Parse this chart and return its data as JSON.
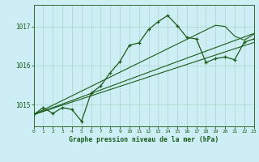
{
  "title": "Graphe pression niveau de la mer (hPa)",
  "background_color": "#cdeef5",
  "grid_color": "#a8d5c8",
  "line_color": "#1a5c1a",
  "hours": [
    0,
    1,
    2,
    3,
    4,
    5,
    6,
    7,
    8,
    9,
    10,
    11,
    12,
    13,
    14,
    15,
    16,
    17,
    18,
    19,
    20,
    21,
    22,
    23
  ],
  "pressure": [
    1014.75,
    1014.93,
    1014.78,
    1014.93,
    1014.88,
    1014.58,
    1015.3,
    1015.48,
    1015.82,
    1016.1,
    1016.52,
    1016.58,
    1016.92,
    1017.12,
    1017.28,
    1017.02,
    1016.72,
    1016.68,
    1016.08,
    1016.18,
    1016.22,
    1016.15,
    1016.6,
    1016.68
  ],
  "trend1": [
    1014.75,
    1014.84,
    1014.93,
    1015.02,
    1015.11,
    1015.2,
    1015.29,
    1015.38,
    1015.47,
    1015.56,
    1015.65,
    1015.74,
    1015.83,
    1015.92,
    1016.01,
    1016.1,
    1016.19,
    1016.28,
    1016.37,
    1016.46,
    1016.55,
    1016.64,
    1016.73,
    1016.82
  ],
  "trend2": [
    1014.75,
    1014.87,
    1014.99,
    1015.11,
    1015.23,
    1015.35,
    1015.47,
    1015.59,
    1015.71,
    1015.83,
    1015.95,
    1016.07,
    1016.19,
    1016.31,
    1016.43,
    1016.55,
    1016.67,
    1016.79,
    1016.91,
    1017.03,
    1017.0,
    1016.75,
    1016.65,
    1016.8
  ],
  "trend3": [
    1014.75,
    1014.83,
    1014.91,
    1014.99,
    1015.07,
    1015.15,
    1015.23,
    1015.31,
    1015.39,
    1015.47,
    1015.55,
    1015.63,
    1015.71,
    1015.79,
    1015.87,
    1015.95,
    1016.03,
    1016.11,
    1016.19,
    1016.27,
    1016.35,
    1016.43,
    1016.51,
    1016.59
  ],
  "ylim": [
    1014.45,
    1017.55
  ],
  "yticks": [
    1015,
    1016,
    1017
  ],
  "xlim": [
    0,
    23
  ]
}
